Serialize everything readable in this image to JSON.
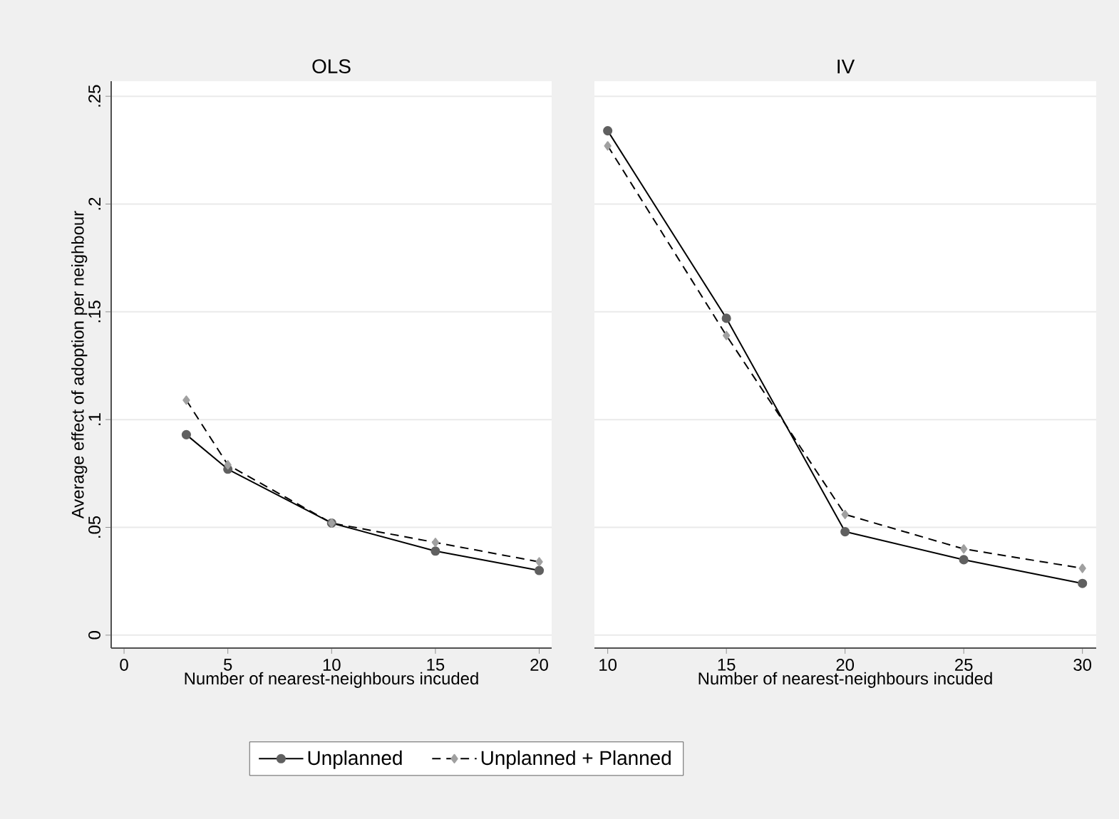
{
  "chart_data": [
    {
      "type": "line",
      "title": "OLS",
      "xlabel": "Number of nearest-neighbours incuded",
      "ylabel": "Average effect of adoption per neighbour",
      "xlim": [
        -0.62,
        20.6
      ],
      "xticks": [
        0,
        5,
        10,
        15,
        20
      ],
      "ylim": [
        -0.006,
        0.257
      ],
      "yticks": [
        {
          "value": 0,
          "label": "0"
        },
        {
          "value": 0.05,
          "label": ".05"
        },
        {
          "value": 0.1,
          "label": ".1"
        },
        {
          "value": 0.15,
          "label": ".15"
        },
        {
          "value": 0.2,
          "label": ".2"
        },
        {
          "value": 0.25,
          "label": ".25"
        }
      ],
      "grid": "y",
      "legend": false,
      "series": [
        {
          "color": "#606060",
          "marker": "circle",
          "line_style": "solid",
          "x": [
            3,
            5,
            10,
            15,
            20
          ],
          "values": [
            0.093,
            0.077,
            0.052,
            0.039,
            0.03
          ]
        },
        {
          "color": "#a0a0a0",
          "marker": "diamond",
          "line_style": "dashed",
          "x": [
            3,
            5,
            10,
            15,
            20
          ],
          "values": [
            0.109,
            0.079,
            0.052,
            0.043,
            0.034
          ]
        }
      ]
    },
    {
      "type": "line",
      "title": "IV",
      "xlabel": "Number of nearest-neighbours incuded",
      "xlim": [
        9.44,
        30.58
      ],
      "xticks": [
        10,
        15,
        20,
        25,
        30
      ],
      "ylim": [
        -0.006,
        0.257
      ],
      "yticks": [
        0,
        0.05,
        0.1,
        0.15,
        0.2,
        0.25
      ],
      "grid": "y",
      "legend": "bottom",
      "tick_labels": "x",
      "series": [
        {
          "name": "Unplanned",
          "color": "#606060",
          "marker": "circle",
          "line_style": "solid",
          "x": [
            10,
            15,
            20,
            25,
            30
          ],
          "values": [
            0.234,
            0.147,
            0.048,
            0.035,
            0.024
          ]
        },
        {
          "name": "Unplanned + Planned",
          "color": "#a0a0a0",
          "marker": "diamond",
          "line_style": "dashed",
          "x": [
            10,
            15,
            20,
            25,
            30
          ],
          "values": [
            0.227,
            0.139,
            0.056,
            0.04,
            0.031
          ]
        }
      ]
    }
  ]
}
